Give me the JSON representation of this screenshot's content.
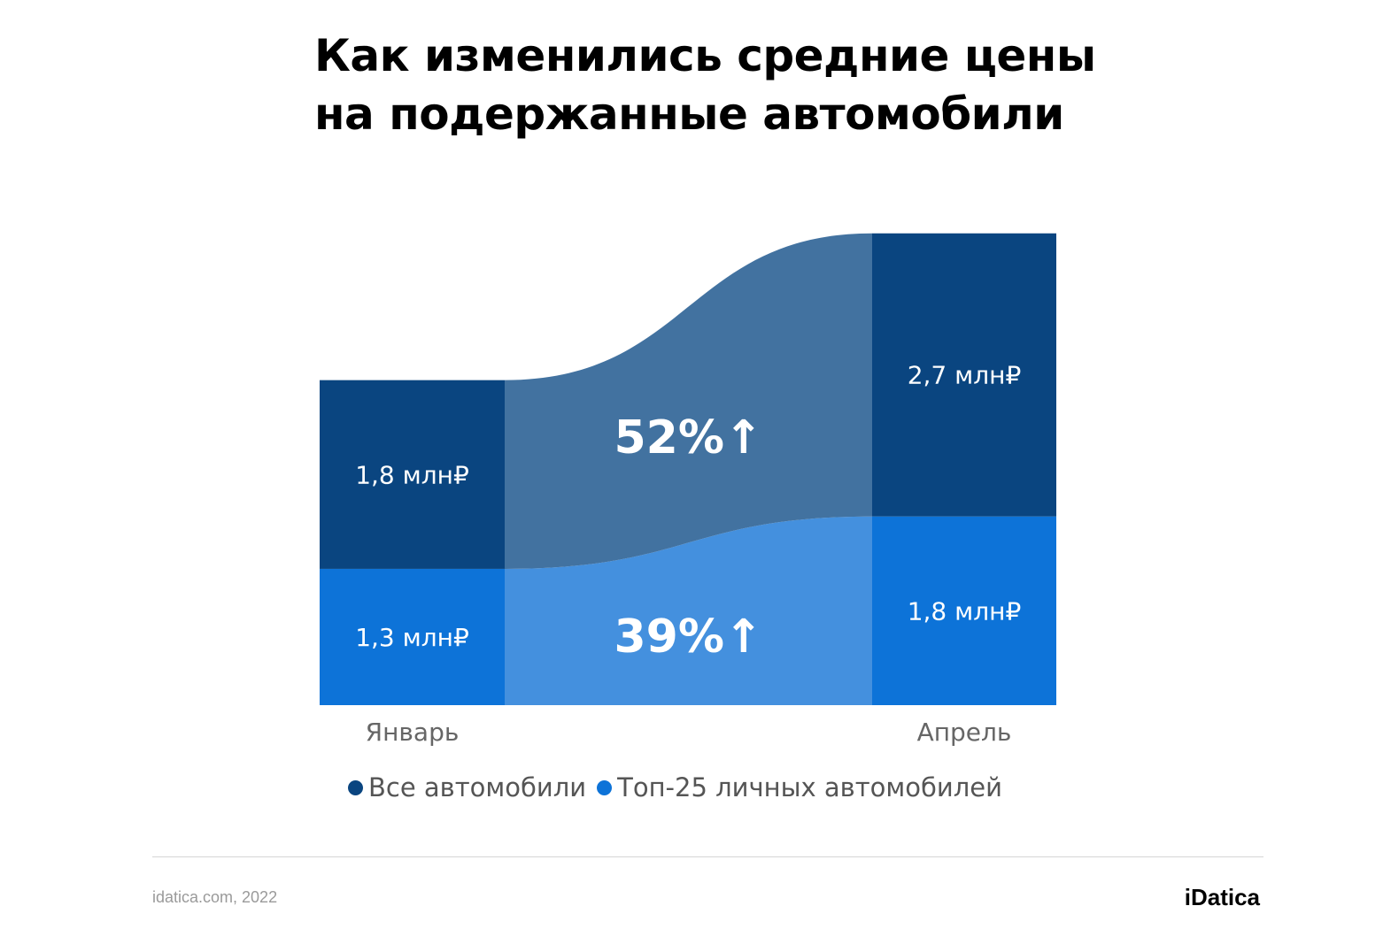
{
  "title_lines": [
    "Как изменились средние цены",
    "на подержанные автомобили"
  ],
  "chart_data": {
    "type": "bar",
    "subtype": "stacked-bar-with-flow",
    "categories": [
      "Январь",
      "Апрель"
    ],
    "series": [
      {
        "name": "Все автомобили",
        "values": [
          1.8,
          2.7
        ],
        "labels": [
          "1,8 млн₽",
          "2,7 млн₽"
        ],
        "color": "#0a4580",
        "flow_color": "#4272a0",
        "change_label": "52%↑"
      },
      {
        "name": "Топ-25 личных автомобилей",
        "values": [
          1.3,
          1.8
        ],
        "labels": [
          "1,3 млн₽",
          "1,8 млн₽"
        ],
        "color": "#0d73d8",
        "flow_color": "#4490de",
        "change_label": "39%↑"
      }
    ],
    "unit": "млн₽",
    "stack_order": "second series at bottom",
    "legend_position": "bottom",
    "grid": false
  },
  "footer": {
    "source": "idatica.com, 2022",
    "brand": "iDatica"
  }
}
